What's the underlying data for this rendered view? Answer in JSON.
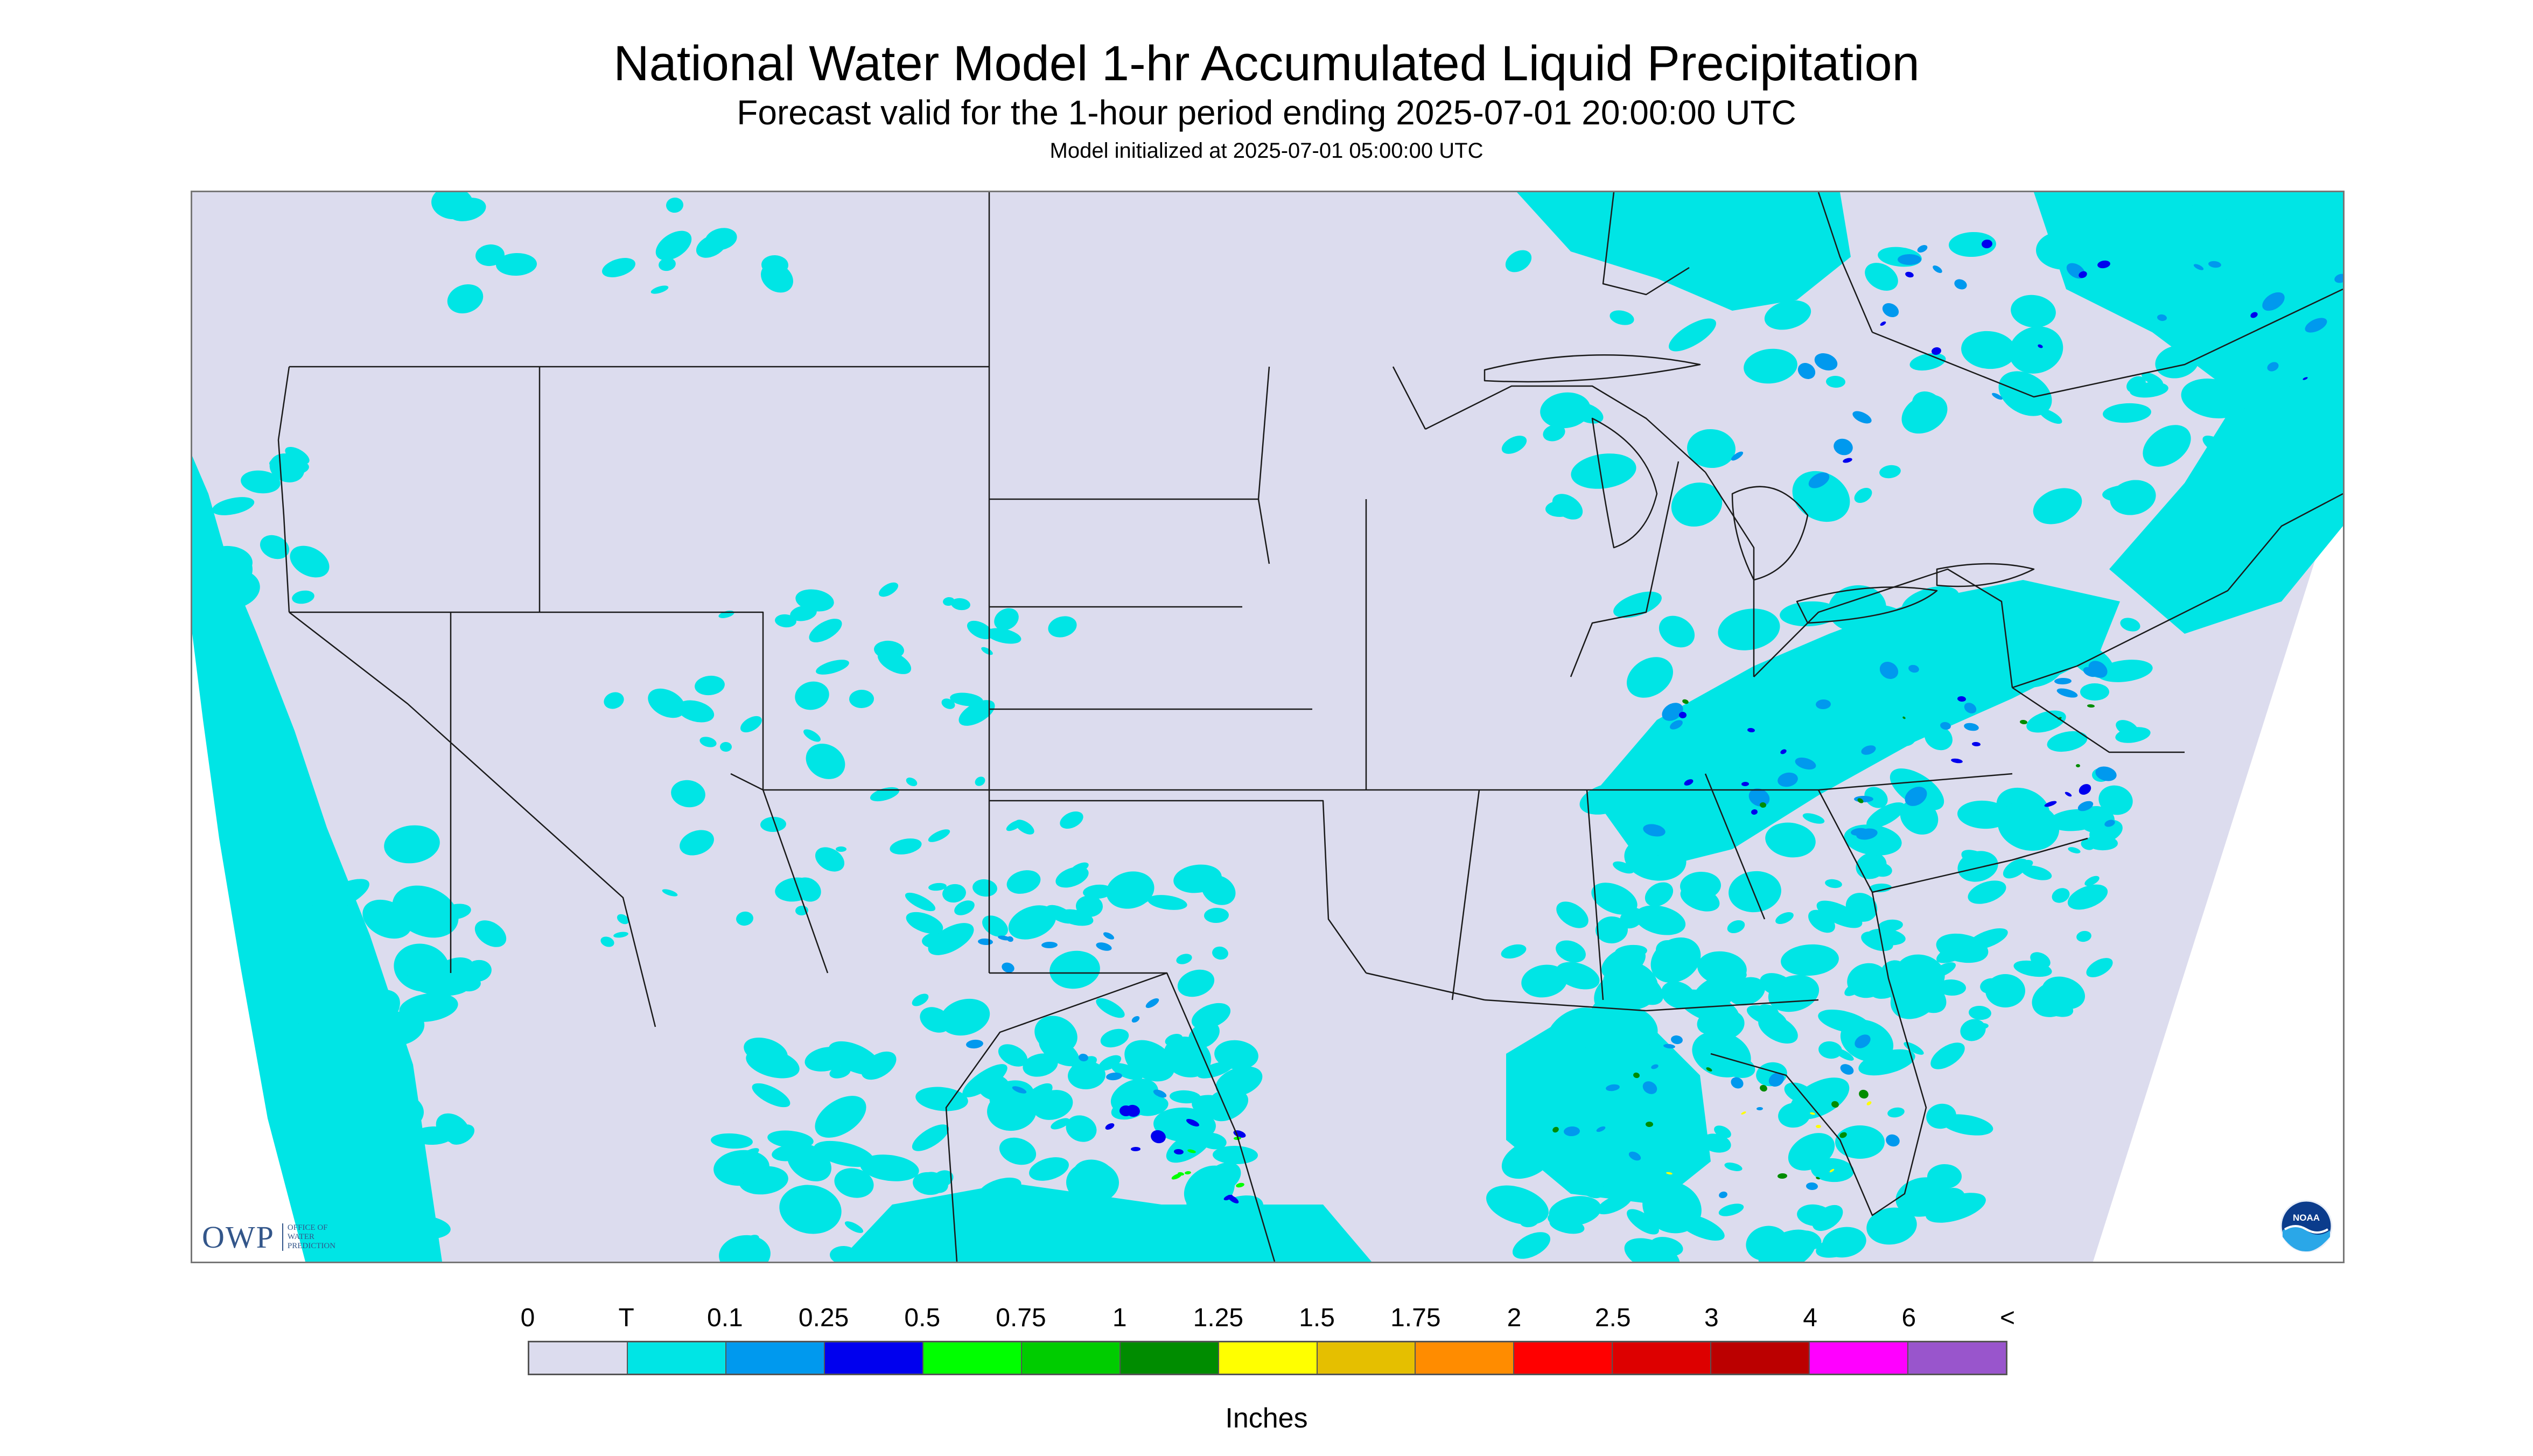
{
  "header": {
    "title": "National Water Model 1-hr Accumulated Liquid Precipitation",
    "subtitle": "Forecast valid for the 1-hour period ending 2025-07-01 20:00:00 UTC",
    "init_line": "Model initialized at 2025-07-01 05:00:00 UTC"
  },
  "logos": {
    "owp_text": "OWP",
    "owp_subtext": "OFFICE OF WATER PREDICTION",
    "noaa_text": "NOAA"
  },
  "map": {
    "background_color": "#dcdcee",
    "outside_color": "#ffffff",
    "boundary_color": "#1a1a1a"
  },
  "legend": {
    "unit": "Inches",
    "labels": [
      "0",
      "T",
      "0.1",
      "0.25",
      "0.5",
      "0.75",
      "1",
      "1.25",
      "1.5",
      "1.75",
      "2",
      "2.5",
      "3",
      "4",
      "6",
      "<"
    ],
    "colors": [
      "#dcdcee",
      "#00e5e5",
      "#0099ee",
      "#0000ee",
      "#00ff00",
      "#00cc00",
      "#008c00",
      "#ffff00",
      "#e5bf00",
      "#ff8c00",
      "#ff0000",
      "#dd0000",
      "#bb0000",
      "#ff00ff",
      "#9955cc"
    ]
  }
}
